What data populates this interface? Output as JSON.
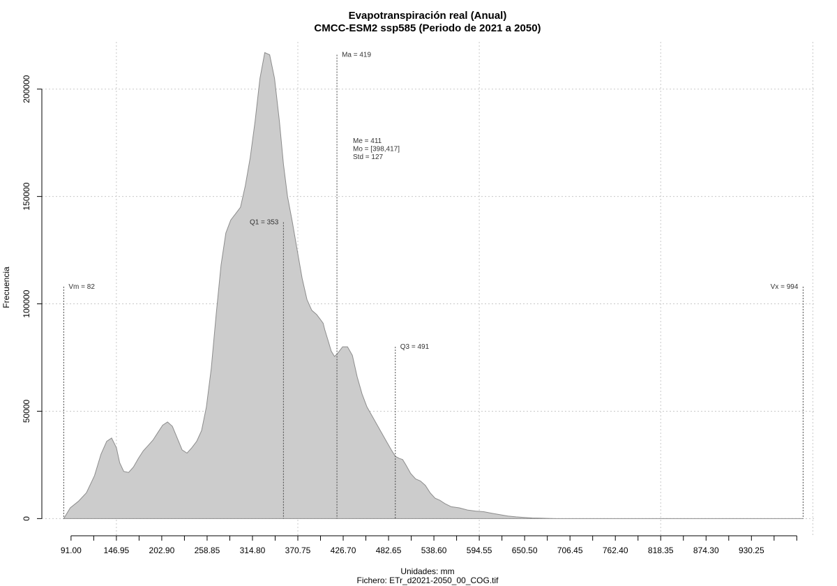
{
  "chart_data": {
    "type": "area",
    "title": "Evapotranspiración real (Anual)",
    "subtitle": "CMCC-ESM2 ssp585 (Periodo de 2021 a 2050)",
    "xlabel": "Unidades: mm",
    "caption": "Fichero: ETr_d2021-2050_00_COG.tif",
    "ylabel": "Frecuencia",
    "xlim": [
      55,
      1010
    ],
    "ylim": [
      -8000,
      222000
    ],
    "x_ticks": [
      "91.00",
      "146.95",
      "202.90",
      "258.85",
      "314.80",
      "370.75",
      "426.70",
      "482.65",
      "538.60",
      "594.55",
      "650.50",
      "706.45",
      "762.40",
      "818.35",
      "874.30",
      "930.25"
    ],
    "x_tick_values": [
      91.0,
      146.95,
      202.9,
      258.85,
      314.8,
      370.75,
      426.7,
      482.65,
      538.6,
      594.55,
      650.5,
      706.45,
      762.4,
      818.35,
      874.3,
      930.25
    ],
    "y_ticks": [
      "0",
      "50000",
      "100000",
      "150000",
      "200000"
    ],
    "y_tick_values": [
      0,
      50000,
      100000,
      150000,
      200000
    ],
    "grid": true,
    "fill_color": "#cccccc",
    "line_color": "#8c8c8c",
    "x": [
      82,
      90,
      100,
      110,
      120,
      128,
      135,
      141,
      147,
      151,
      156,
      162,
      168,
      174,
      180,
      186,
      192,
      198,
      204,
      210,
      216,
      222,
      228,
      234,
      240,
      246,
      252,
      258,
      264,
      270,
      276,
      282,
      288,
      294,
      300,
      306,
      312,
      318,
      324,
      330,
      336,
      342,
      348,
      353,
      358,
      364,
      370,
      376,
      382,
      388,
      394,
      398,
      402,
      404,
      408,
      412,
      416,
      420,
      426,
      432,
      438,
      444,
      450,
      456,
      462,
      468,
      474,
      480,
      486,
      491,
      496,
      500,
      504,
      510,
      516,
      522,
      528,
      534,
      540,
      546,
      552,
      560,
      570,
      580,
      590,
      600,
      610,
      620,
      630,
      640,
      650,
      660,
      670,
      680,
      690,
      700,
      720,
      740,
      760,
      780,
      800,
      820,
      840,
      860,
      880,
      900,
      920,
      940,
      960,
      980,
      994
    ],
    "y": [
      0,
      5000,
      8000,
      12000,
      20000,
      30000,
      36000,
      37500,
      33000,
      26000,
      22000,
      21500,
      24000,
      28000,
      31500,
      34000,
      36500,
      40000,
      43500,
      45000,
      43000,
      37500,
      32000,
      30500,
      33000,
      36000,
      41000,
      52000,
      70000,
      95000,
      118000,
      133000,
      139000,
      142000,
      145000,
      155000,
      168000,
      185000,
      205000,
      217000,
      216000,
      205000,
      185000,
      165000,
      150000,
      138000,
      125000,
      112000,
      102000,
      97000,
      95000,
      93000,
      91000,
      88000,
      83000,
      78000,
      75500,
      77000,
      80000,
      80000,
      76000,
      66000,
      58000,
      52000,
      48000,
      44000,
      40000,
      36000,
      32000,
      29000,
      28000,
      27500,
      25000,
      21000,
      18500,
      17500,
      15500,
      12000,
      9500,
      8500,
      7000,
      5500,
      5000,
      4000,
      3500,
      3200,
      2500,
      1800,
      1200,
      800,
      500,
      300,
      200,
      100,
      0,
      0,
      0,
      0,
      0,
      0,
      0,
      0,
      0,
      0,
      0,
      0,
      0,
      0,
      0,
      0,
      0
    ],
    "markers": [
      {
        "value": 82,
        "label": "Vm = 82",
        "top": 108000,
        "label_side": "right"
      },
      {
        "value": 353,
        "label": "Q1 = 353",
        "top": 138000,
        "label_side": "left"
      },
      {
        "value": 419,
        "label": "Ma = 419",
        "top": 216000,
        "label_side": "right"
      },
      {
        "value": 491,
        "label": "Q3 = 491",
        "top": 80000,
        "label_side": "right"
      },
      {
        "value": 994,
        "label": "Vx = 994",
        "top": 108000,
        "label_side": "left"
      }
    ],
    "stats": [
      "Me = 411",
      "Mo = [398,417]",
      "Std = 127"
    ]
  }
}
